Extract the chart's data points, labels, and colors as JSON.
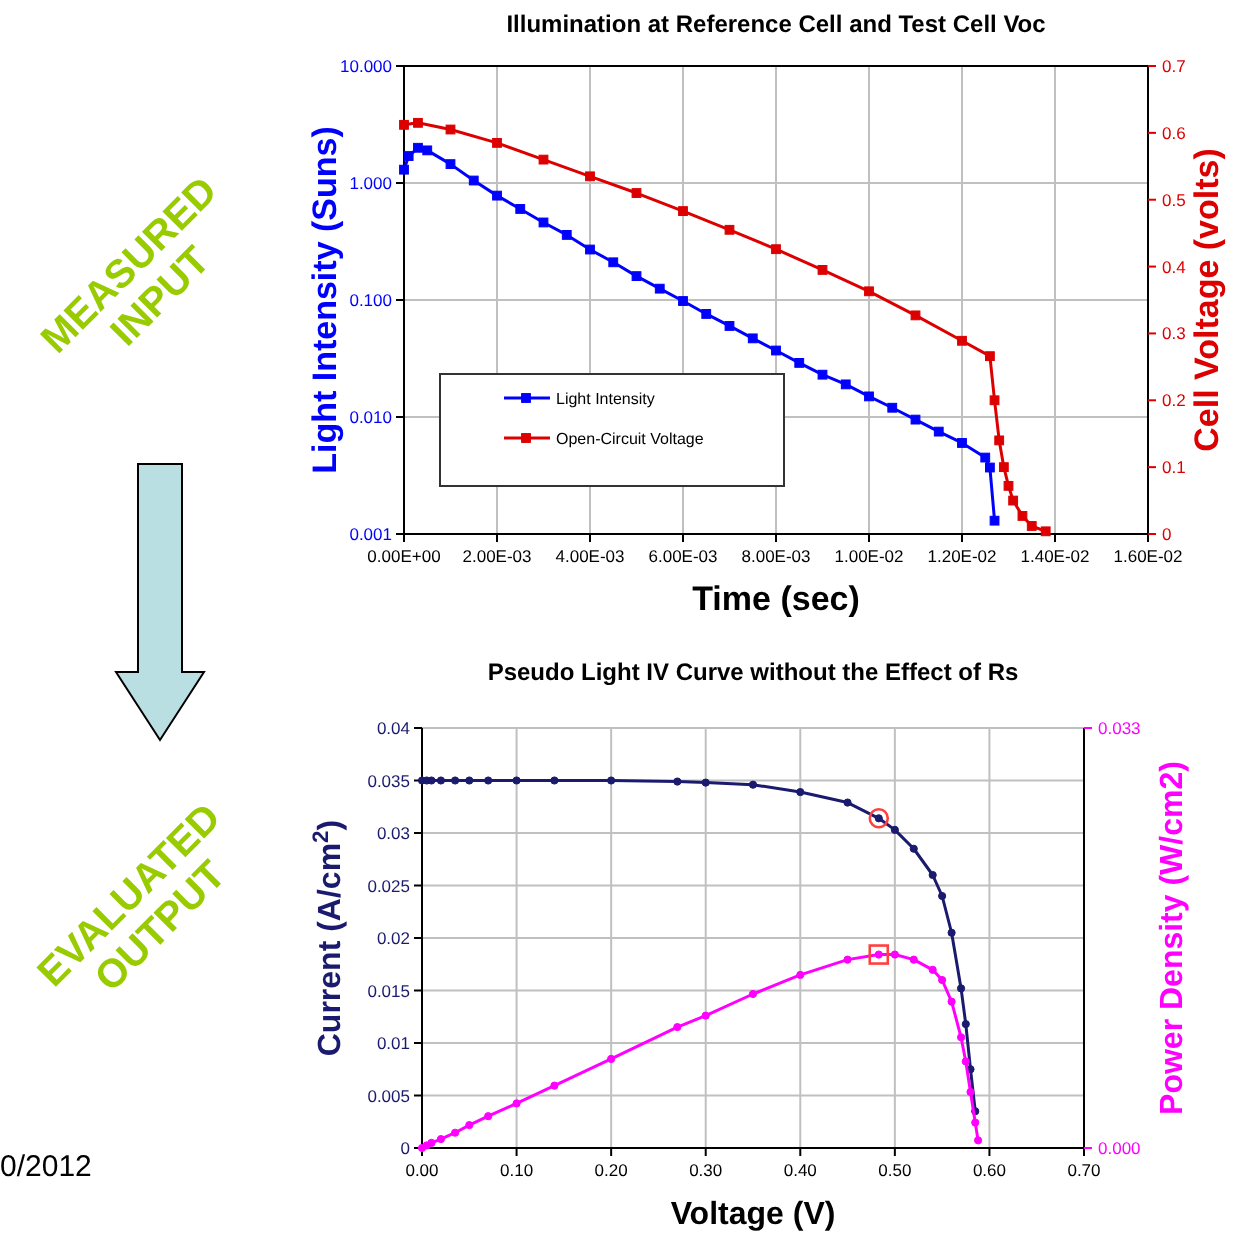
{
  "chart_data": [
    {
      "type": "line",
      "title": "Illumination  at Reference Cell and Test Cell Voc",
      "xlabel": "Time (sec)",
      "ylabel": "Light Intensity (Suns)",
      "y2label": "Cell Voltage (volts)",
      "series": [
        {
          "name": "Light Intensity",
          "color": "#0000ff",
          "x": [
            0,
            0.0001,
            0.0003,
            0.0005,
            0.001,
            0.0015,
            0.002,
            0.0025,
            0.003,
            0.0035,
            0.004,
            0.0045,
            0.005,
            0.0055,
            0.006,
            0.0065,
            0.007,
            0.0075,
            0.008,
            0.0085,
            0.009,
            0.0095,
            0.01,
            0.0105,
            0.011,
            0.0115,
            0.012,
            0.0125,
            0.0126,
            0.0127
          ],
          "values": [
            1.3,
            1.7,
            2.0,
            1.9,
            1.45,
            1.05,
            0.78,
            0.6,
            0.46,
            0.36,
            0.27,
            0.21,
            0.16,
            0.125,
            0.098,
            0.076,
            0.06,
            0.047,
            0.037,
            0.029,
            0.023,
            0.019,
            0.015,
            0.012,
            0.0095,
            0.0075,
            0.006,
            0.0045,
            0.0037,
            0.0013
          ]
        },
        {
          "name": "Open-Circuit Voltage",
          "color": "#dd0000",
          "axis": "y2",
          "x": [
            0,
            0.0003,
            0.001,
            0.002,
            0.003,
            0.004,
            0.005,
            0.006,
            0.007,
            0.008,
            0.009,
            0.01,
            0.011,
            0.012,
            0.0126,
            0.0127,
            0.0128,
            0.0129,
            0.013,
            0.0131,
            0.0133,
            0.0135,
            0.0138
          ],
          "values": [
            0.612,
            0.615,
            0.605,
            0.585,
            0.56,
            0.535,
            0.51,
            0.483,
            0.455,
            0.426,
            0.395,
            0.363,
            0.327,
            0.289,
            0.266,
            0.2,
            0.14,
            0.1,
            0.072,
            0.05,
            0.027,
            0.012,
            0.004
          ]
        }
      ],
      "xlim": [
        0,
        0.016
      ],
      "xticks": [
        {
          "value": 0,
          "label": "0.00E+00"
        },
        {
          "value": 0.002,
          "label": "2.00E-03"
        },
        {
          "value": 0.004,
          "label": "4.00E-03"
        },
        {
          "value": 0.006,
          "label": "6.00E-03"
        },
        {
          "value": 0.008,
          "label": "8.00E-03"
        },
        {
          "value": 0.01,
          "label": "1.00E-02"
        },
        {
          "value": 0.012,
          "label": "1.20E-02"
        },
        {
          "value": 0.014,
          "label": "1.40E-02"
        },
        {
          "value": 0.016,
          "label": "1.60E-02"
        }
      ],
      "ylim": [
        0.001,
        10
      ],
      "yticks": [
        {
          "value": 0.001,
          "label": "0.001"
        },
        {
          "value": 0.01,
          "label": "0.010"
        },
        {
          "value": 0.1,
          "label": "0.100"
        },
        {
          "value": 1,
          "label": "1.000"
        },
        {
          "value": 10,
          "label": "10.000"
        }
      ],
      "y2lim": [
        0,
        0.7
      ],
      "y2ticks": [
        0,
        0.1,
        0.2,
        0.3,
        0.4,
        0.5,
        0.6,
        0.7
      ],
      "log": "y",
      "grid": true,
      "legend": "bottom left",
      "marker": "square"
    },
    {
      "type": "line",
      "title": "Pseudo Light IV Curve without the Effect of Rs",
      "xlabel": "Voltage (V)",
      "ylabel": "Current (A/cm$^{2}$)",
      "y2label": "Power Density (W/cm2)",
      "x": [
        0,
        0.005,
        0.01,
        0.02,
        0.035,
        0.05,
        0.07,
        0.1,
        0.14,
        0.2,
        0.27,
        0.3,
        0.35,
        0.4,
        0.45,
        0.483,
        0.5,
        0.52,
        0.54,
        0.55,
        0.56,
        0.57,
        0.575,
        0.58,
        0.585,
        0.588
      ],
      "series": [
        {
          "color": "#1a1a6e",
          "values": [
            0.035,
            0.035,
            0.035,
            0.035,
            0.035,
            0.035,
            0.035,
            0.035,
            0.035,
            0.035,
            0.0349,
            0.0348,
            0.0346,
            0.0339,
            0.0329,
            0.0314,
            0.0303,
            0.0285,
            0.026,
            0.024,
            0.0205,
            0.0152,
            0.0118,
            0.0075,
            0.0035,
            null
          ]
        },
        {
          "color": "#ff00ff",
          "axis": "y2",
          "values": [
            0,
            0.0002,
            0.0004,
            0.0007,
            0.0012,
            0.0018,
            0.0025,
            0.0035,
            0.0049,
            0.007,
            0.0095,
            0.0104,
            0.0121,
            0.0136,
            0.0148,
            0.0152,
            0.0152,
            0.0148,
            0.014,
            0.0132,
            0.0115,
            0.0087,
            0.0068,
            0.0044,
            0.002,
            0.0006
          ]
        },
        {
          "type": "scatter",
          "color": "#ff4040",
          "marker": "circle",
          "x": [
            0.483
          ],
          "values": [
            0.0314
          ]
        },
        {
          "type": "scatter",
          "color": "#ff4040",
          "marker": "square",
          "axis": "y2",
          "x": [
            0.483
          ],
          "values": [
            0.0152
          ]
        }
      ],
      "xlim": [
        0,
        0.7
      ],
      "xticks": [
        {
          "value": 0,
          "label": "0.00"
        },
        {
          "value": 0.1,
          "label": "0.10"
        },
        {
          "value": 0.2,
          "label": "0.20"
        },
        {
          "value": 0.3,
          "label": "0.30"
        },
        {
          "value": 0.4,
          "label": "0.40"
        },
        {
          "value": 0.5,
          "label": "0.50"
        },
        {
          "value": 0.6,
          "label": "0.60"
        },
        {
          "value": 0.7,
          "label": "0.70"
        }
      ],
      "ylim": [
        0,
        0.04
      ],
      "yticks": [
        0,
        0.005,
        0.01,
        0.015,
        0.02,
        0.025,
        0.03,
        0.035,
        0.04
      ],
      "y2lim": [
        0,
        0.033
      ],
      "y2ticks": [
        {
          "value": 0,
          "label": "0.000"
        },
        0.033
      ],
      "grid": true,
      "marker": "circle"
    },
    {
      "type": "other",
      "annotations": [
        "MEASURED INPUT",
        "EVALUATED OUTPUT",
        "0/2012"
      ]
    }
  ]
}
